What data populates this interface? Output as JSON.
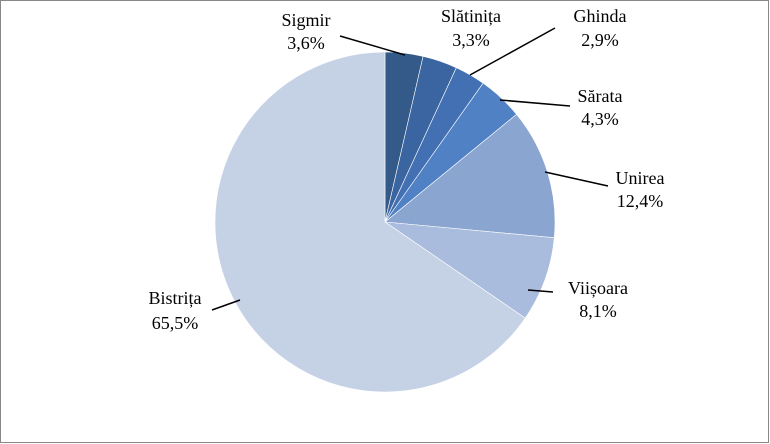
{
  "chart_data": {
    "type": "pie",
    "categories": [
      "Sigmir",
      "Slătinița",
      "Ghinda",
      "Sărata",
      "Unirea",
      "Viișoara",
      "Bistrița"
    ],
    "values": [
      3.6,
      3.3,
      2.9,
      4.3,
      12.4,
      8.1,
      65.5
    ],
    "value_labels": [
      "3,6%",
      "3,3%",
      "2,9%",
      "4,3%",
      "12,4%",
      "8,1%",
      "65,5%"
    ],
    "colors": [
      "#345a8a",
      "#3b65a0",
      "#4270b3",
      "#4f81c4",
      "#8aa5d0",
      "#a9bcdd",
      "#c5d1e5"
    ]
  }
}
